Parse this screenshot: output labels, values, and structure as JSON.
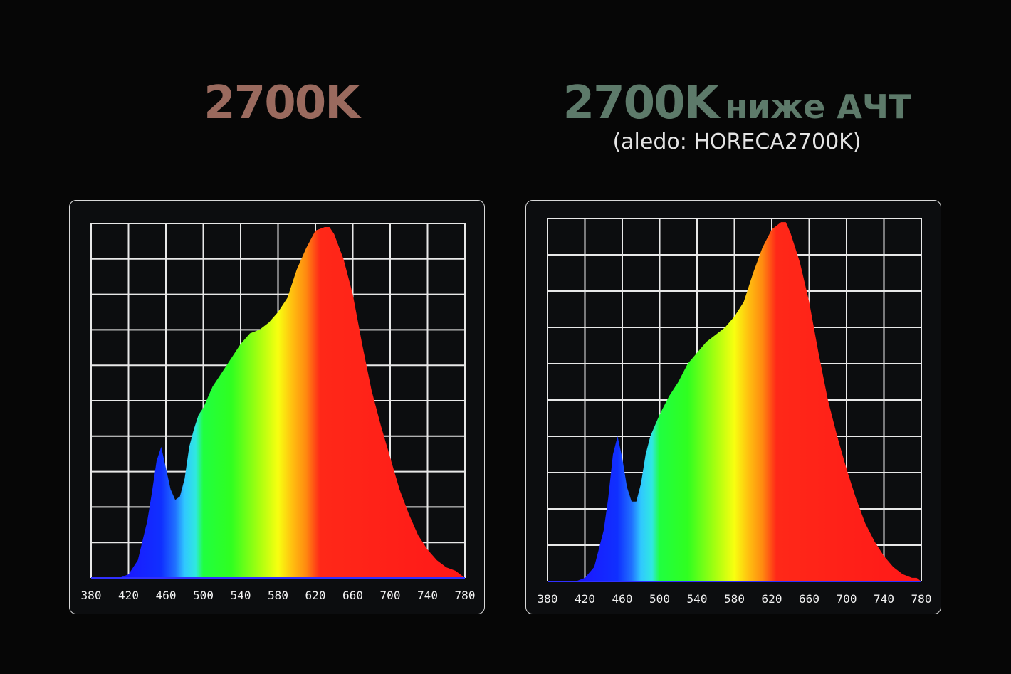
{
  "headings": {
    "left_title": "2700K",
    "right_title": "2700K",
    "right_title_suffix": "ниже АЧТ",
    "right_subtitle": "(aledo: HORECA2700K)"
  },
  "colors": {
    "left_title": "#9a6a5e",
    "right_title": "#5d7a6a",
    "grid": "#e8e8e8",
    "background": "#060606"
  },
  "chart_data": [
    {
      "type": "area",
      "title": "2700K",
      "xlabel": "",
      "ylabel": "",
      "xlim": [
        380,
        780
      ],
      "ylim": [
        0,
        100
      ],
      "grid": true,
      "fill": "visible-spectrum gradient",
      "xticks": [
        380,
        420,
        460,
        500,
        540,
        580,
        620,
        660,
        700,
        740,
        780
      ],
      "x": [
        380,
        410,
        420,
        430,
        440,
        445,
        450,
        455,
        460,
        465,
        470,
        475,
        480,
        485,
        490,
        495,
        500,
        510,
        520,
        530,
        540,
        550,
        560,
        570,
        580,
        590,
        600,
        610,
        620,
        630,
        635,
        640,
        650,
        660,
        670,
        680,
        690,
        700,
        710,
        720,
        730,
        740,
        750,
        760,
        770,
        775,
        780
      ],
      "values": [
        0,
        0,
        1,
        5,
        16,
        24,
        33,
        37,
        31,
        25,
        22,
        23,
        28,
        37,
        42,
        46,
        48,
        54,
        58,
        62,
        66,
        69,
        70,
        72,
        75,
        79,
        87,
        93,
        98,
        99,
        99,
        97,
        90,
        80,
        66,
        53,
        43,
        34,
        25,
        18,
        12,
        8,
        5,
        3,
        2,
        1,
        0
      ]
    },
    {
      "type": "area",
      "title": "2700K ниже АЧТ",
      "xlabel": "",
      "ylabel": "",
      "xlim": [
        380,
        780
      ],
      "ylim": [
        0,
        100
      ],
      "grid": true,
      "fill": "visible-spectrum gradient",
      "xticks": [
        380,
        420,
        460,
        500,
        540,
        580,
        620,
        660,
        700,
        740,
        780
      ],
      "x": [
        380,
        410,
        420,
        430,
        440,
        445,
        450,
        455,
        460,
        465,
        470,
        475,
        480,
        485,
        490,
        495,
        500,
        510,
        520,
        530,
        540,
        550,
        560,
        570,
        580,
        590,
        600,
        610,
        620,
        630,
        635,
        640,
        650,
        660,
        670,
        680,
        690,
        700,
        710,
        720,
        730,
        740,
        750,
        760,
        770,
        775,
        780
      ],
      "values": [
        0,
        0,
        1,
        4,
        14,
        23,
        35,
        40,
        34,
        26,
        22,
        22,
        27,
        35,
        40,
        43,
        46,
        51,
        55,
        60,
        63,
        66,
        68,
        70,
        73,
        77,
        85,
        92,
        97,
        99,
        99,
        96,
        88,
        77,
        63,
        50,
        40,
        31,
        23,
        16,
        11,
        7,
        4,
        2,
        1,
        1,
        0
      ]
    }
  ]
}
